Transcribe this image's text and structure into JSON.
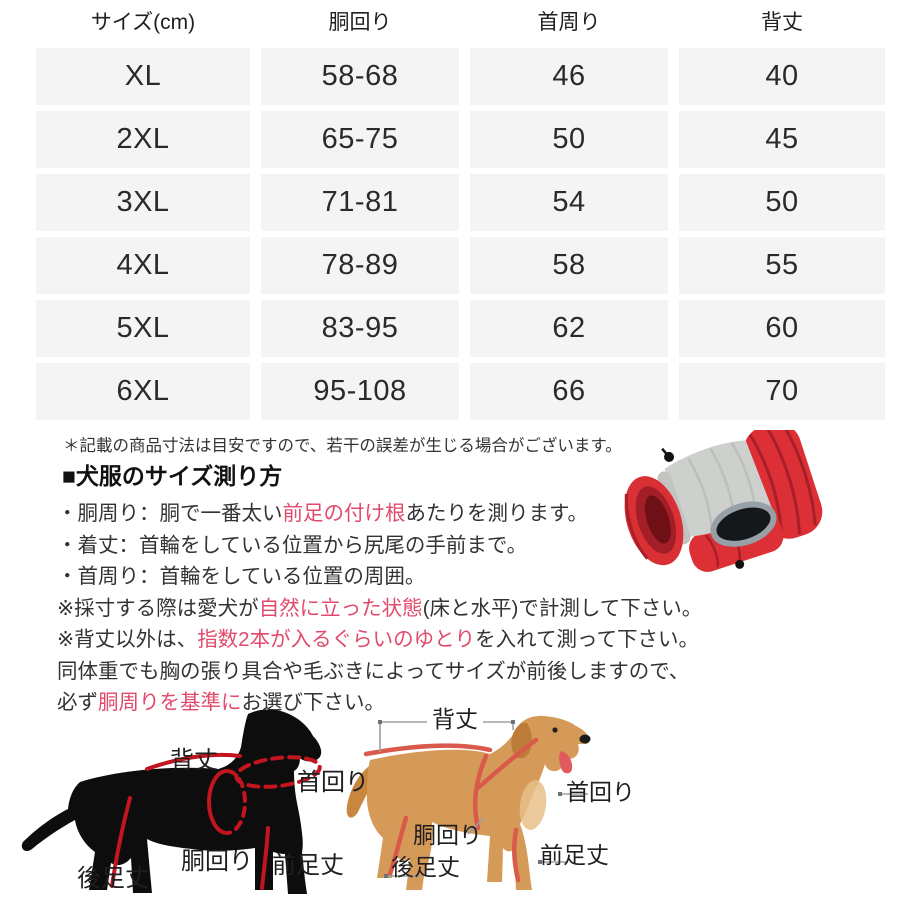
{
  "table": {
    "headers": [
      "サイズ(cm)",
      "胴回り",
      "首周り",
      "背丈"
    ],
    "rows": [
      [
        "XL",
        "58-68",
        "46",
        "40"
      ],
      [
        "2XL",
        "65-75",
        "50",
        "45"
      ],
      [
        "3XL",
        "71-81",
        "54",
        "50"
      ],
      [
        "4XL",
        "78-89",
        "58",
        "55"
      ],
      [
        "5XL",
        "83-95",
        "62",
        "60"
      ],
      [
        "6XL",
        "95-108",
        "66",
        "70"
      ]
    ]
  },
  "note": "＊記載の商品寸法は目安ですので、若干の誤差が生じる場合がございます。",
  "measure": {
    "heading": "■犬服のサイズ測り方",
    "lines": [
      [
        {
          "t": "・胴周り：胴で一番太い"
        },
        {
          "t": "前足の付け根",
          "red": true
        },
        {
          "t": "あたりを測ります。"
        }
      ],
      [
        {
          "t": "・着丈：首輪をしている位置から尻尾の手前まで。"
        }
      ],
      [
        {
          "t": "・首周り：首輪をしている位置の周囲。"
        }
      ],
      [
        {
          "t": "※採寸する際は愛犬が"
        },
        {
          "t": "自然に立った状態",
          "red": true
        },
        {
          "t": "(床と水平)で計測して下さい。"
        }
      ],
      [
        {
          "t": "※背丈以外は、"
        },
        {
          "t": "指数2本が入るぐらいのゆとり",
          "red": true
        },
        {
          "t": "を入れて測って下さい。"
        }
      ],
      [
        {
          "t": "同体重でも胸の張り具合や毛ぶきによってサイズが前後しますので、"
        }
      ],
      [
        {
          "t": "必ず"
        },
        {
          "t": "胴周りを基準に",
          "red": true
        },
        {
          "t": "お選び下さい。"
        }
      ]
    ]
  },
  "diagrams": {
    "silhouette_labels": {
      "back": "背丈",
      "neck": "首回り",
      "girth": "胴回り",
      "front_leg": "前足丈",
      "rear_leg": "後足丈"
    },
    "photo_labels": {
      "back": "背丈",
      "neck": "首回り",
      "girth": "胴回り",
      "front_leg": "前足丈",
      "rear_leg": "後足丈"
    }
  },
  "colors": {
    "accent_text": "#e14a6b",
    "measure_line": "#c2151f",
    "ribbon": "#d95a4b",
    "table_cell_bg": "#f4f4f4"
  }
}
